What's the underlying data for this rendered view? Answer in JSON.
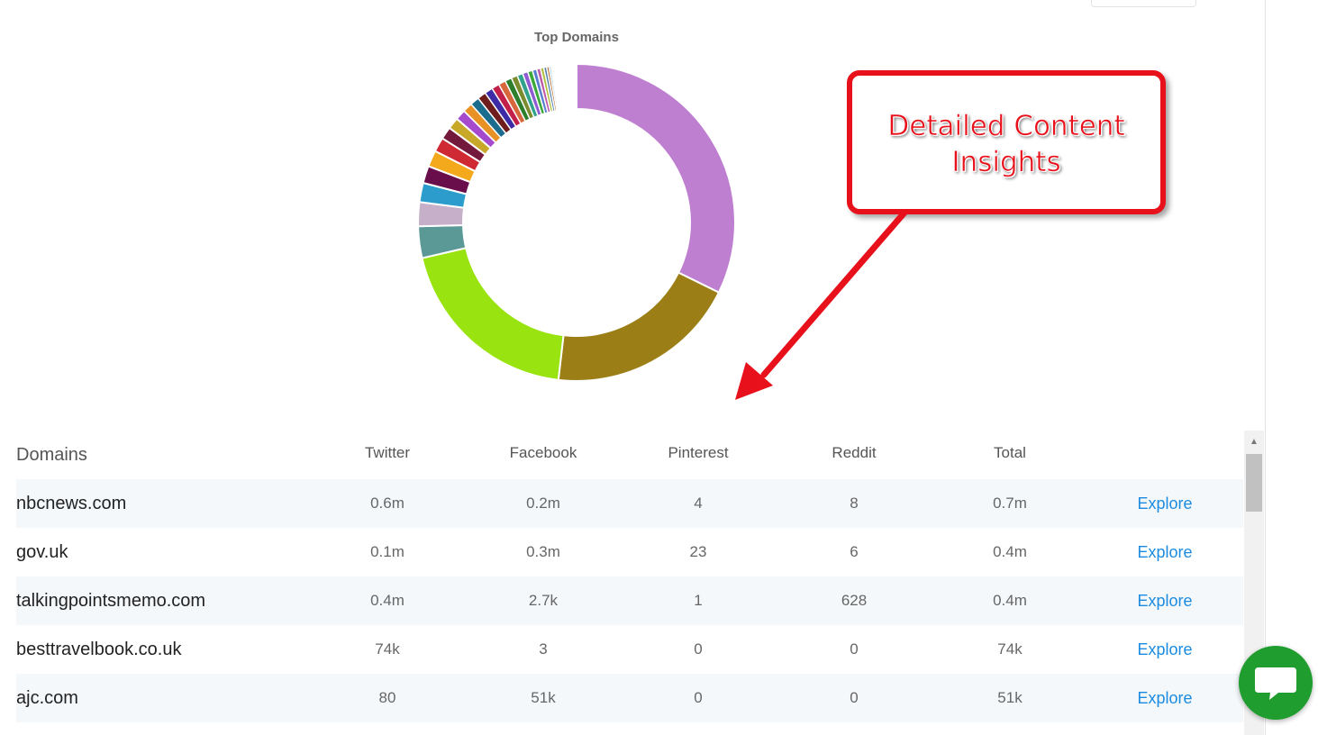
{
  "chart": {
    "title": "Top Domains"
  },
  "chart_data": {
    "type": "pie",
    "title": "Top Domains",
    "slices": [
      {
        "value": 33.0,
        "color": "#bf7fd1"
      },
      {
        "value": 20.0,
        "color": "#9b7f16"
      },
      {
        "value": 20.0,
        "color": "#99e310"
      },
      {
        "value": 3.3,
        "color": "#5b9997"
      },
      {
        "value": 2.5,
        "color": "#c6b0c9"
      },
      {
        "value": 2.0,
        "color": "#2b9ccb"
      },
      {
        "value": 1.8,
        "color": "#6a0e4b"
      },
      {
        "value": 1.7,
        "color": "#f4a91c"
      },
      {
        "value": 1.5,
        "color": "#cf2a34"
      },
      {
        "value": 1.3,
        "color": "#731a3c"
      },
      {
        "value": 1.2,
        "color": "#c7a828"
      },
      {
        "value": 1.1,
        "color": "#a54acd"
      },
      {
        "value": 1.0,
        "color": "#e89226"
      },
      {
        "value": 0.95,
        "color": "#1c6c8d"
      },
      {
        "value": 0.9,
        "color": "#6e1c1c"
      },
      {
        "value": 0.85,
        "color": "#3c2aa6"
      },
      {
        "value": 0.8,
        "color": "#c21f4a"
      },
      {
        "value": 0.75,
        "color": "#d8683c"
      },
      {
        "value": 0.7,
        "color": "#2d7f2b"
      },
      {
        "value": 0.65,
        "color": "#7b8c2e"
      },
      {
        "value": 0.6,
        "color": "#2fa38b"
      },
      {
        "value": 0.55,
        "color": "#8e5bd3"
      },
      {
        "value": 0.5,
        "color": "#3aa93a"
      },
      {
        "value": 0.45,
        "color": "#5a7fd0"
      },
      {
        "value": 0.4,
        "color": "#c05aa8"
      },
      {
        "value": 0.35,
        "color": "#b0c040"
      },
      {
        "value": 0.3,
        "color": "#4e7da6"
      },
      {
        "value": 0.25,
        "color": "#b06a2c"
      },
      {
        "value": 0.2,
        "color": "#7ab7d9"
      },
      {
        "value": 0.15,
        "color": "#9b9b9b"
      }
    ],
    "remainder_gap": 2.5
  },
  "callout": {
    "text": "Detailed Content Insights",
    "color": "#e8101a"
  },
  "table": {
    "headers": {
      "domain": "Domains",
      "twitter": "Twitter",
      "facebook": "Facebook",
      "pinterest": "Pinterest",
      "reddit": "Reddit",
      "total": "Total"
    },
    "rows": [
      {
        "domain": "nbcnews.com",
        "twitter": "0.6m",
        "facebook": "0.2m",
        "pinterest": "4",
        "reddit": "8",
        "total": "0.7m",
        "action": "Explore"
      },
      {
        "domain": "gov.uk",
        "twitter": "0.1m",
        "facebook": "0.3m",
        "pinterest": "23",
        "reddit": "6",
        "total": "0.4m",
        "action": "Explore"
      },
      {
        "domain": "talkingpointsmemo.com",
        "twitter": "0.4m",
        "facebook": "2.7k",
        "pinterest": "1",
        "reddit": "628",
        "total": "0.4m",
        "action": "Explore"
      },
      {
        "domain": "besttravelbook.co.uk",
        "twitter": "74k",
        "facebook": "3",
        "pinterest": "0",
        "reddit": "0",
        "total": "74k",
        "action": "Explore"
      },
      {
        "domain": "ajc.com",
        "twitter": "80",
        "facebook": "51k",
        "pinterest": "0",
        "reddit": "0",
        "total": "51k",
        "action": "Explore"
      }
    ]
  },
  "scrollbar": {
    "up_icon": "▲"
  },
  "chat": {
    "icon": "chat-bubble-icon",
    "color": "#1f9d2e"
  }
}
